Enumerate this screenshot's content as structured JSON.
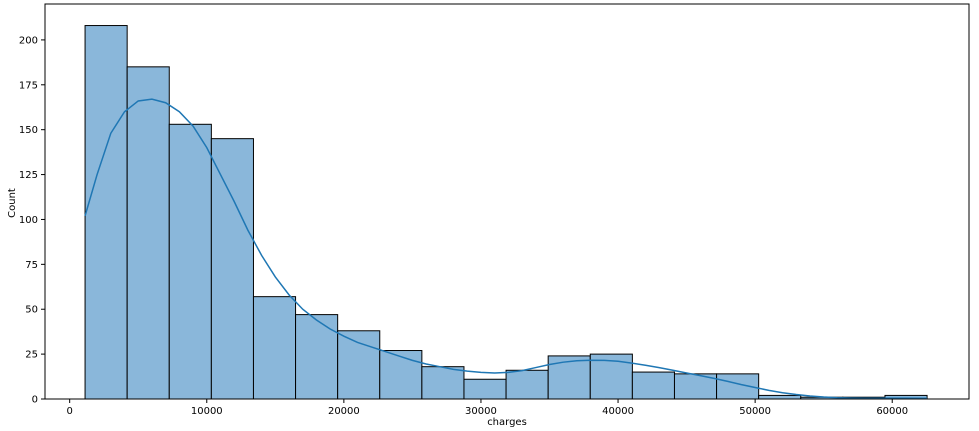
{
  "chart_data": {
    "type": "bar",
    "title": "",
    "xlabel": "charges",
    "ylabel": "Count",
    "xlim": [
      -1800,
      65600
    ],
    "ylim": [
      0,
      220
    ],
    "xticks": [
      0,
      10000,
      20000,
      30000,
      40000,
      50000,
      60000
    ],
    "yticks": [
      0,
      25,
      50,
      75,
      100,
      125,
      150,
      175,
      200
    ],
    "bins": [
      {
        "x0": 1122,
        "x1": 4193,
        "count": 208
      },
      {
        "x0": 4193,
        "x1": 7264,
        "count": 185
      },
      {
        "x0": 7264,
        "x1": 10335,
        "count": 153
      },
      {
        "x0": 10335,
        "x1": 13406,
        "count": 145
      },
      {
        "x0": 13406,
        "x1": 16477,
        "count": 57
      },
      {
        "x0": 16477,
        "x1": 19548,
        "count": 47
      },
      {
        "x0": 19548,
        "x1": 22619,
        "count": 38
      },
      {
        "x0": 22619,
        "x1": 25690,
        "count": 27
      },
      {
        "x0": 25690,
        "x1": 28761,
        "count": 18
      },
      {
        "x0": 28761,
        "x1": 31832,
        "count": 11
      },
      {
        "x0": 31832,
        "x1": 34903,
        "count": 16
      },
      {
        "x0": 34903,
        "x1": 37974,
        "count": 24
      },
      {
        "x0": 37974,
        "x1": 41045,
        "count": 25
      },
      {
        "x0": 41045,
        "x1": 44116,
        "count": 15
      },
      {
        "x0": 44116,
        "x1": 47187,
        "count": 14
      },
      {
        "x0": 47187,
        "x1": 50258,
        "count": 14
      },
      {
        "x0": 50258,
        "x1": 53329,
        "count": 2
      },
      {
        "x0": 53329,
        "x1": 56400,
        "count": 1
      },
      {
        "x0": 56400,
        "x1": 59471,
        "count": 1
      },
      {
        "x0": 59471,
        "x1": 62542,
        "count": 2
      }
    ],
    "kde": {
      "x": [
        1122,
        2000,
        3000,
        4000,
        5000,
        6000,
        7000,
        8000,
        9000,
        10000,
        11000,
        12000,
        13000,
        14000,
        15000,
        16000,
        17000,
        18000,
        19000,
        20000,
        21000,
        22000,
        23000,
        24000,
        25000,
        26000,
        27000,
        28000,
        29000,
        30000,
        31000,
        32000,
        33000,
        34000,
        35000,
        36000,
        37000,
        38000,
        39000,
        40000,
        41000,
        42000,
        43000,
        44000,
        45000,
        46000,
        47000,
        48000,
        49000,
        50000,
        51000,
        52000,
        53000,
        54000,
        55000,
        56000,
        57000,
        58000,
        59000,
        60000,
        61000,
        62542
      ],
      "y": [
        102,
        125,
        148,
        160,
        166,
        167,
        165,
        160,
        152,
        140,
        125,
        110,
        94,
        80,
        68,
        58,
        50,
        44,
        39,
        35,
        31.5,
        29,
        26.5,
        24,
        21.5,
        19.5,
        18,
        16.5,
        15.5,
        14.8,
        14.5,
        14.8,
        15.8,
        17.5,
        19.2,
        20.5,
        21.3,
        21.6,
        21.5,
        21,
        20,
        18.8,
        17.5,
        16,
        14.5,
        13,
        11.5,
        9.8,
        8,
        6.4,
        4.8,
        3.5,
        2.5,
        1.7,
        1.1,
        0.7,
        0.5,
        0.4,
        0.4,
        0.5,
        0.5,
        0.4
      ]
    },
    "colors": {
      "bar_fill": "#8ab7da",
      "bar_edge": "#000000",
      "kde_line": "#1f77b4"
    },
    "grid": false,
    "legend": "none"
  }
}
